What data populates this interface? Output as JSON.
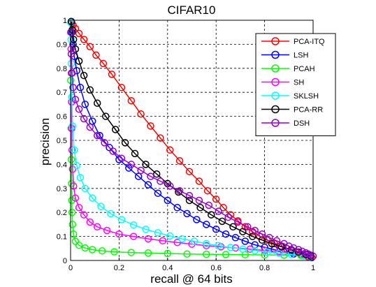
{
  "chart_data": {
    "type": "line",
    "title": "CIFAR10",
    "xlabel": "recall @ 64 bits",
    "ylabel": "precision",
    "xlim": [
      0,
      1
    ],
    "ylim": [
      0,
      1
    ],
    "xticks": [
      "0",
      "0.2",
      "0.4",
      "0.6",
      "0.8",
      "1"
    ],
    "yticks": [
      "0",
      "0.1",
      "0.2",
      "0.3",
      "0.4",
      "0.5",
      "0.6",
      "0.7",
      "0.8",
      "0.9",
      "1"
    ],
    "grid": true,
    "legend_position": "top-right",
    "series": [
      {
        "name": "PCA-ITQ",
        "color": "#ff0000",
        "points": [
          [
            0.005,
            0.99
          ],
          [
            0.01,
            0.98
          ],
          [
            0.02,
            0.965
          ],
          [
            0.035,
            0.945
          ],
          [
            0.055,
            0.92
          ],
          [
            0.08,
            0.89
          ],
          [
            0.105,
            0.855
          ],
          [
            0.135,
            0.82
          ],
          [
            0.17,
            0.775
          ],
          [
            0.21,
            0.72
          ],
          [
            0.25,
            0.665
          ],
          [
            0.29,
            0.61
          ],
          [
            0.33,
            0.56
          ],
          [
            0.37,
            0.51
          ],
          [
            0.41,
            0.46
          ],
          [
            0.45,
            0.415
          ],
          [
            0.49,
            0.37
          ],
          [
            0.53,
            0.33
          ],
          [
            0.565,
            0.29
          ],
          [
            0.6,
            0.255
          ],
          [
            0.63,
            0.22
          ],
          [
            0.66,
            0.19
          ],
          [
            0.69,
            0.165
          ],
          [
            0.72,
            0.14
          ],
          [
            0.75,
            0.12
          ],
          [
            0.78,
            0.1
          ],
          [
            0.81,
            0.085
          ],
          [
            0.84,
            0.07
          ],
          [
            0.865,
            0.06
          ],
          [
            0.89,
            0.05
          ],
          [
            0.91,
            0.04
          ],
          [
            0.93,
            0.033
          ],
          [
            0.95,
            0.026
          ],
          [
            0.965,
            0.02
          ],
          [
            0.98,
            0.015
          ],
          [
            0.995,
            0.012
          ]
        ]
      },
      {
        "name": "LSH",
        "color": "#0000ff",
        "points": [
          [
            0.003,
            0.99
          ],
          [
            0.006,
            0.95
          ],
          [
            0.01,
            0.9
          ],
          [
            0.015,
            0.85
          ],
          [
            0.025,
            0.79
          ],
          [
            0.04,
            0.72
          ],
          [
            0.06,
            0.65
          ],
          [
            0.09,
            0.58
          ],
          [
            0.12,
            0.52
          ],
          [
            0.16,
            0.47
          ],
          [
            0.2,
            0.42
          ],
          [
            0.24,
            0.385
          ],
          [
            0.28,
            0.35
          ],
          [
            0.32,
            0.315
          ],
          [
            0.36,
            0.28
          ],
          [
            0.4,
            0.25
          ],
          [
            0.44,
            0.22
          ],
          [
            0.48,
            0.195
          ],
          [
            0.52,
            0.17
          ],
          [
            0.56,
            0.15
          ],
          [
            0.6,
            0.13
          ],
          [
            0.64,
            0.11
          ],
          [
            0.68,
            0.095
          ],
          [
            0.72,
            0.08
          ],
          [
            0.76,
            0.065
          ],
          [
            0.8,
            0.055
          ],
          [
            0.84,
            0.045
          ],
          [
            0.88,
            0.035
          ],
          [
            0.92,
            0.027
          ],
          [
            0.96,
            0.02
          ],
          [
            0.99,
            0.015
          ]
        ]
      },
      {
        "name": "PCAH",
        "color": "#00ff00",
        "points": [
          [
            0.001,
            0.75
          ],
          [
            0.002,
            0.55
          ],
          [
            0.003,
            0.42
          ],
          [
            0.004,
            0.32
          ],
          [
            0.005,
            0.25
          ],
          [
            0.006,
            0.2
          ],
          [
            0.008,
            0.15
          ],
          [
            0.012,
            0.11
          ],
          [
            0.02,
            0.08
          ],
          [
            0.035,
            0.063
          ],
          [
            0.06,
            0.052
          ],
          [
            0.09,
            0.045
          ],
          [
            0.13,
            0.04
          ],
          [
            0.18,
            0.036
          ],
          [
            0.25,
            0.033
          ],
          [
            0.32,
            0.031
          ],
          [
            0.4,
            0.029
          ],
          [
            0.48,
            0.027
          ],
          [
            0.56,
            0.026
          ],
          [
            0.64,
            0.025
          ],
          [
            0.72,
            0.024
          ],
          [
            0.8,
            0.023
          ],
          [
            0.88,
            0.022
          ],
          [
            0.95,
            0.021
          ],
          [
            0.99,
            0.02
          ]
        ]
      },
      {
        "name": "SH",
        "color": "#ff00ff",
        "points": [
          [
            0.001,
            0.95
          ],
          [
            0.002,
            0.88
          ],
          [
            0.003,
            0.78
          ],
          [
            0.004,
            0.66
          ],
          [
            0.005,
            0.55
          ],
          [
            0.006,
            0.46
          ],
          [
            0.008,
            0.38
          ],
          [
            0.012,
            0.31
          ],
          [
            0.02,
            0.26
          ],
          [
            0.035,
            0.22
          ],
          [
            0.055,
            0.19
          ],
          [
            0.08,
            0.16
          ],
          [
            0.11,
            0.14
          ],
          [
            0.15,
            0.125
          ],
          [
            0.2,
            0.11
          ],
          [
            0.26,
            0.1
          ],
          [
            0.32,
            0.09
          ],
          [
            0.38,
            0.082
          ],
          [
            0.44,
            0.075
          ],
          [
            0.5,
            0.068
          ],
          [
            0.56,
            0.062
          ],
          [
            0.62,
            0.057
          ],
          [
            0.68,
            0.052
          ],
          [
            0.74,
            0.047
          ],
          [
            0.8,
            0.042
          ],
          [
            0.86,
            0.037
          ],
          [
            0.92,
            0.032
          ],
          [
            0.97,
            0.026
          ],
          [
            0.99,
            0.022
          ]
        ]
      },
      {
        "name": "SKLSH",
        "color": "#00ffff",
        "points": [
          [
            0.001,
            0.99
          ],
          [
            0.002,
            0.92
          ],
          [
            0.003,
            0.82
          ],
          [
            0.005,
            0.68
          ],
          [
            0.008,
            0.56
          ],
          [
            0.015,
            0.46
          ],
          [
            0.025,
            0.395
          ],
          [
            0.04,
            0.345
          ],
          [
            0.06,
            0.3
          ],
          [
            0.09,
            0.26
          ],
          [
            0.125,
            0.225
          ],
          [
            0.165,
            0.195
          ],
          [
            0.21,
            0.17
          ],
          [
            0.26,
            0.148
          ],
          [
            0.31,
            0.13
          ],
          [
            0.36,
            0.115
          ],
          [
            0.41,
            0.102
          ],
          [
            0.46,
            0.09
          ],
          [
            0.51,
            0.08
          ],
          [
            0.56,
            0.07
          ],
          [
            0.61,
            0.062
          ],
          [
            0.66,
            0.054
          ],
          [
            0.71,
            0.047
          ],
          [
            0.76,
            0.041
          ],
          [
            0.81,
            0.035
          ],
          [
            0.86,
            0.03
          ],
          [
            0.91,
            0.025
          ],
          [
            0.96,
            0.02
          ],
          [
            0.99,
            0.016
          ]
        ]
      },
      {
        "name": "PCA-RR",
        "color": "#000000",
        "points": [
          [
            0.003,
            0.995
          ],
          [
            0.007,
            0.96
          ],
          [
            0.012,
            0.92
          ],
          [
            0.02,
            0.88
          ],
          [
            0.035,
            0.83
          ],
          [
            0.055,
            0.77
          ],
          [
            0.08,
            0.71
          ],
          [
            0.11,
            0.655
          ],
          [
            0.145,
            0.6
          ],
          [
            0.185,
            0.545
          ],
          [
            0.225,
            0.49
          ],
          [
            0.265,
            0.445
          ],
          [
            0.31,
            0.4
          ],
          [
            0.355,
            0.36
          ],
          [
            0.4,
            0.32
          ],
          [
            0.445,
            0.285
          ],
          [
            0.49,
            0.25
          ],
          [
            0.535,
            0.22
          ],
          [
            0.58,
            0.19
          ],
          [
            0.625,
            0.163
          ],
          [
            0.67,
            0.14
          ],
          [
            0.71,
            0.12
          ],
          [
            0.75,
            0.1
          ],
          [
            0.79,
            0.085
          ],
          [
            0.83,
            0.07
          ],
          [
            0.87,
            0.057
          ],
          [
            0.91,
            0.045
          ],
          [
            0.94,
            0.035
          ],
          [
            0.97,
            0.025
          ],
          [
            0.99,
            0.018
          ]
        ]
      },
      {
        "name": "DSH",
        "color": "#9900cc",
        "points": [
          [
            0.001,
            0.95
          ],
          [
            0.003,
            0.86
          ],
          [
            0.006,
            0.78
          ],
          [
            0.01,
            0.72
          ],
          [
            0.02,
            0.67
          ],
          [
            0.035,
            0.63
          ],
          [
            0.055,
            0.59
          ],
          [
            0.08,
            0.555
          ],
          [
            0.11,
            0.52
          ],
          [
            0.14,
            0.49
          ],
          [
            0.175,
            0.455
          ],
          [
            0.21,
            0.425
          ],
          [
            0.25,
            0.4
          ],
          [
            0.29,
            0.375
          ],
          [
            0.33,
            0.35
          ],
          [
            0.37,
            0.33
          ],
          [
            0.41,
            0.31
          ],
          [
            0.45,
            0.29
          ],
          [
            0.49,
            0.27
          ],
          [
            0.53,
            0.25
          ],
          [
            0.57,
            0.23
          ],
          [
            0.61,
            0.205
          ],
          [
            0.65,
            0.18
          ],
          [
            0.69,
            0.16
          ],
          [
            0.73,
            0.14
          ],
          [
            0.76,
            0.125
          ],
          [
            0.79,
            0.11
          ],
          [
            0.82,
            0.095
          ],
          [
            0.85,
            0.082
          ],
          [
            0.88,
            0.07
          ],
          [
            0.9,
            0.06
          ],
          [
            0.92,
            0.052
          ],
          [
            0.94,
            0.045
          ],
          [
            0.955,
            0.038
          ],
          [
            0.97,
            0.032
          ],
          [
            0.98,
            0.027
          ],
          [
            0.99,
            0.022
          ],
          [
            1.0,
            0.018
          ]
        ]
      }
    ]
  }
}
